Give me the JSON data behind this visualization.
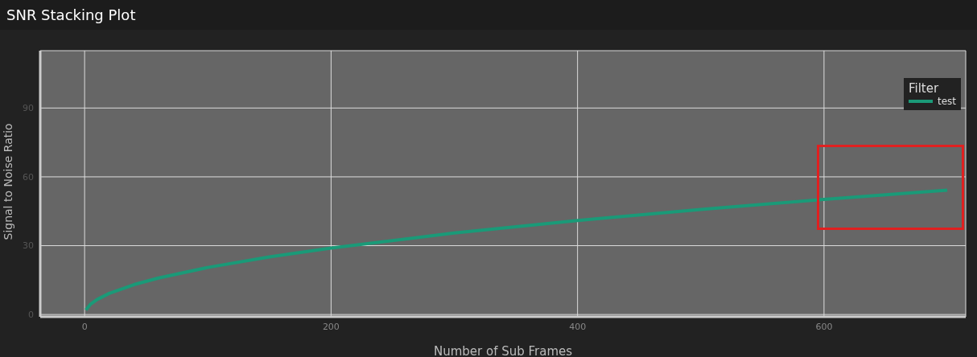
{
  "chart_data": {
    "type": "line",
    "title": "SNR Stacking Plot",
    "xlabel": "Number of Sub Frames",
    "ylabel": "Signal to Noise Ratio",
    "legend_title": "Filter",
    "series": [
      {
        "name": "test",
        "color": "#1a9a78",
        "x": [
          1,
          5,
          10,
          20,
          40,
          60,
          100,
          150,
          200,
          300,
          400,
          500,
          600,
          700
        ],
        "values": [
          2,
          4.6,
          6.5,
          9.2,
          13,
          15.9,
          20.5,
          25.1,
          29,
          35.5,
          41,
          45.8,
          50.2,
          54.2
        ]
      }
    ],
    "xlim": [
      -36,
      715
    ],
    "xticks": [
      0,
      200,
      400,
      600
    ],
    "ylim": [
      -1,
      115
    ],
    "yticks": [
      0,
      30,
      60,
      90
    ],
    "grid": true,
    "legend": "top right",
    "marker": "none",
    "line_style": "solid"
  }
}
